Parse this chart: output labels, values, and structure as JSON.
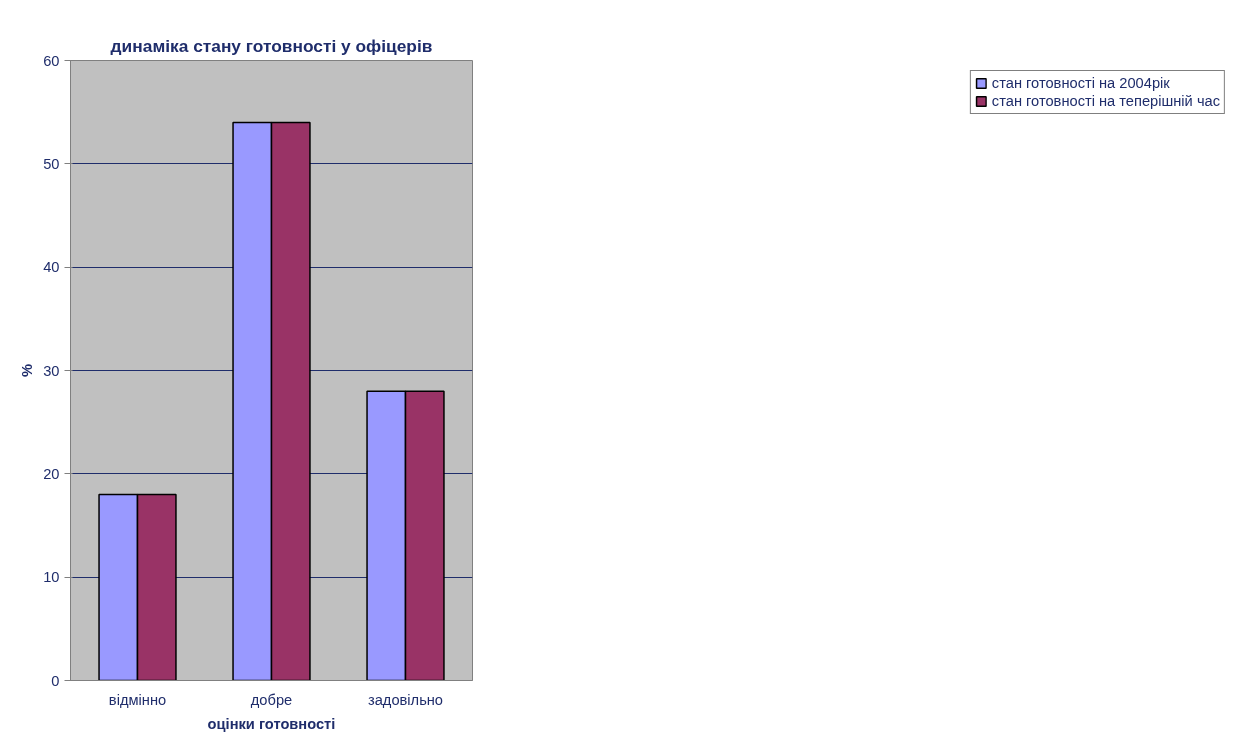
{
  "chart_data": {
    "type": "bar",
    "title": "динаміка стану готовності у офіцерів",
    "xlabel": "оцінки готовності",
    "ylabel": "%",
    "categories": [
      "відмінно",
      "добре",
      "задовільно"
    ],
    "series": [
      {
        "name": "стан готовності на 2004рік",
        "color": "#9999ff",
        "values": [
          18,
          54,
          28
        ]
      },
      {
        "name": "стан готовності на теперішній час",
        "color": "#993366",
        "values": [
          18,
          54,
          28
        ]
      }
    ],
    "ylim": [
      0,
      60
    ],
    "yticks": [
      0,
      10,
      20,
      30,
      40,
      50,
      60
    ],
    "grid": "y",
    "legend": "right"
  }
}
